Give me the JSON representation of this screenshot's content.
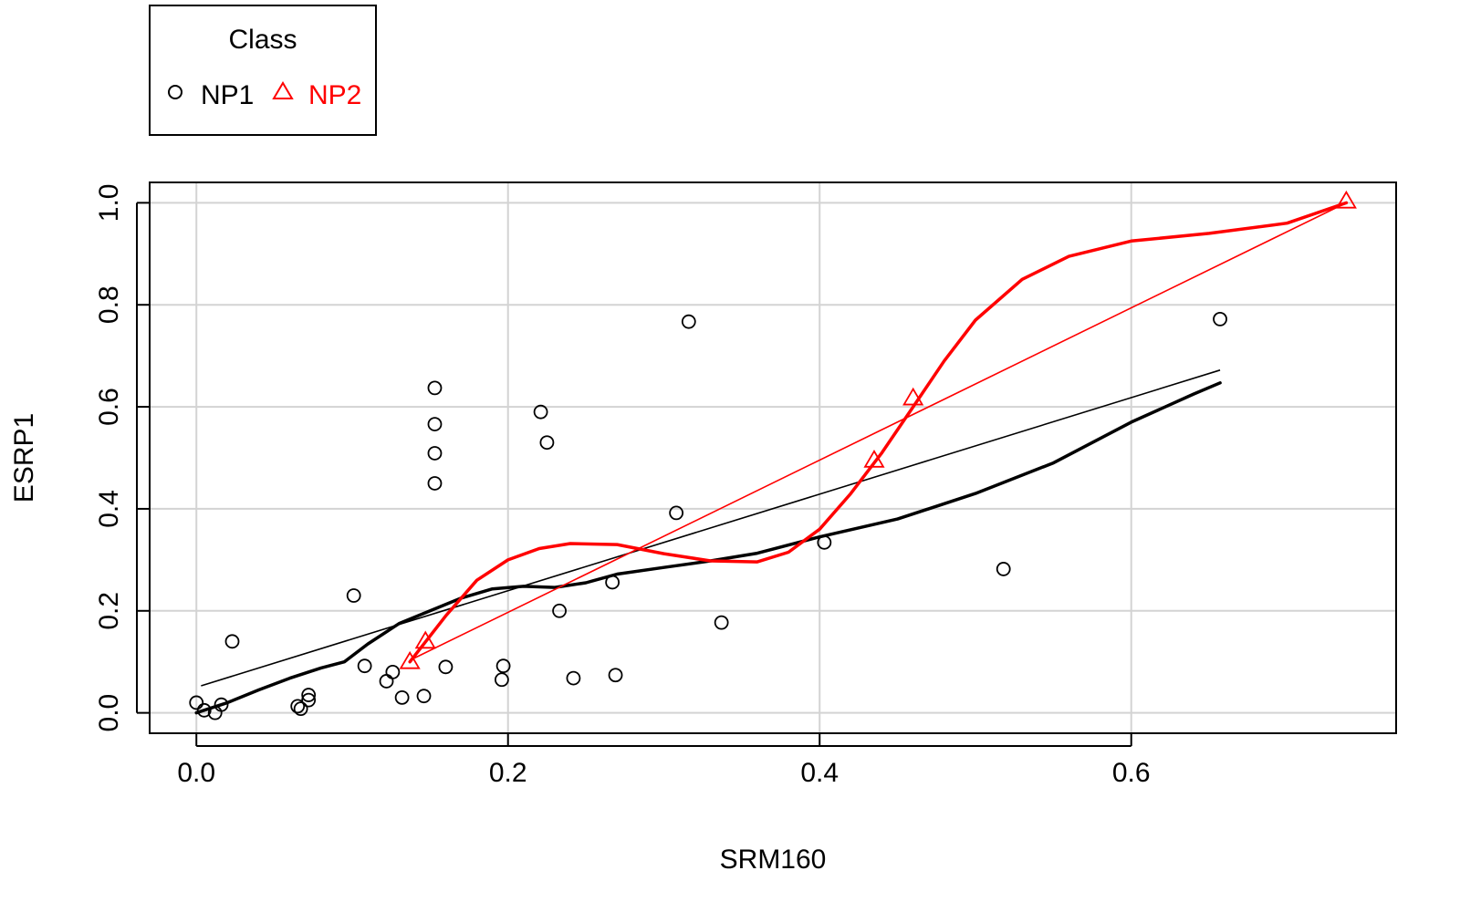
{
  "chart_data": {
    "type": "scatter",
    "xlabel": "SRM160",
    "ylabel": "ESRP1",
    "xlim": [
      -0.03,
      0.77
    ],
    "ylim": [
      -0.04,
      1.04
    ],
    "x_ticks": [
      0.0,
      0.2,
      0.4,
      0.6
    ],
    "x_tick_labels": [
      "0.0",
      "0.2",
      "0.4",
      "0.6"
    ],
    "y_ticks": [
      0.0,
      0.2,
      0.4,
      0.6,
      0.8,
      1.0
    ],
    "y_tick_labels": [
      "0.0",
      "0.2",
      "0.4",
      "0.6",
      "0.8",
      "1.0"
    ],
    "grid": true,
    "legend": {
      "title": "Class",
      "position": "top-left, above plot",
      "entries": [
        {
          "label": "NP1",
          "marker": "circle",
          "color": "#000000"
        },
        {
          "label": "NP2",
          "marker": "triangle",
          "color": "#ff0000"
        }
      ]
    },
    "series": [
      {
        "name": "NP1",
        "marker": "circle",
        "color": "#000000",
        "points": [
          [
            0.0,
            0.02
          ],
          [
            0.005,
            0.005
          ],
          [
            0.012,
            0.0
          ],
          [
            0.016,
            0.016
          ],
          [
            0.023,
            0.14
          ],
          [
            0.065,
            0.013
          ],
          [
            0.067,
            0.008
          ],
          [
            0.072,
            0.035
          ],
          [
            0.072,
            0.025
          ],
          [
            0.101,
            0.23
          ],
          [
            0.108,
            0.092
          ],
          [
            0.122,
            0.062
          ],
          [
            0.126,
            0.08
          ],
          [
            0.132,
            0.03
          ],
          [
            0.146,
            0.033
          ],
          [
            0.153,
            0.637
          ],
          [
            0.153,
            0.566
          ],
          [
            0.153,
            0.509
          ],
          [
            0.153,
            0.45
          ],
          [
            0.16,
            0.09
          ],
          [
            0.196,
            0.065
          ],
          [
            0.197,
            0.092
          ],
          [
            0.221,
            0.59
          ],
          [
            0.225,
            0.53
          ],
          [
            0.233,
            0.2
          ],
          [
            0.242,
            0.068
          ],
          [
            0.267,
            0.256
          ],
          [
            0.269,
            0.074
          ],
          [
            0.308,
            0.392
          ],
          [
            0.316,
            0.767
          ],
          [
            0.337,
            0.177
          ],
          [
            0.403,
            0.334
          ],
          [
            0.518,
            0.282
          ],
          [
            0.657,
            0.772
          ]
        ],
        "fit_line": [
          [
            0.003,
            0.053
          ],
          [
            0.657,
            0.672
          ]
        ],
        "smooth_curve": [
          [
            0.0,
            0.0
          ],
          [
            0.02,
            0.02
          ],
          [
            0.04,
            0.045
          ],
          [
            0.06,
            0.068
          ],
          [
            0.08,
            0.088
          ],
          [
            0.095,
            0.1
          ],
          [
            0.11,
            0.135
          ],
          [
            0.13,
            0.175
          ],
          [
            0.15,
            0.2
          ],
          [
            0.17,
            0.225
          ],
          [
            0.19,
            0.243
          ],
          [
            0.21,
            0.248
          ],
          [
            0.23,
            0.246
          ],
          [
            0.25,
            0.255
          ],
          [
            0.27,
            0.272
          ],
          [
            0.3,
            0.285
          ],
          [
            0.33,
            0.298
          ],
          [
            0.36,
            0.313
          ],
          [
            0.4,
            0.345
          ],
          [
            0.45,
            0.38
          ],
          [
            0.5,
            0.43
          ],
          [
            0.55,
            0.49
          ],
          [
            0.6,
            0.57
          ],
          [
            0.64,
            0.625
          ],
          [
            0.657,
            0.647
          ]
        ]
      },
      {
        "name": "NP2",
        "marker": "triangle",
        "color": "#ff0000",
        "points": [
          [
            0.137,
            0.1
          ],
          [
            0.147,
            0.14
          ],
          [
            0.435,
            0.495
          ],
          [
            0.46,
            0.617
          ],
          [
            0.738,
            1.003
          ]
        ],
        "fit_line": [
          [
            0.137,
            0.103
          ],
          [
            0.738,
            1.0
          ]
        ],
        "smooth_curve": [
          [
            0.137,
            0.1
          ],
          [
            0.16,
            0.19
          ],
          [
            0.18,
            0.26
          ],
          [
            0.2,
            0.3
          ],
          [
            0.22,
            0.322
          ],
          [
            0.24,
            0.332
          ],
          [
            0.27,
            0.33
          ],
          [
            0.3,
            0.312
          ],
          [
            0.33,
            0.298
          ],
          [
            0.36,
            0.296
          ],
          [
            0.38,
            0.315
          ],
          [
            0.4,
            0.36
          ],
          [
            0.42,
            0.43
          ],
          [
            0.44,
            0.51
          ],
          [
            0.46,
            0.6
          ],
          [
            0.48,
            0.69
          ],
          [
            0.5,
            0.77
          ],
          [
            0.53,
            0.85
          ],
          [
            0.56,
            0.895
          ],
          [
            0.6,
            0.925
          ],
          [
            0.65,
            0.94
          ],
          [
            0.7,
            0.96
          ],
          [
            0.738,
            1.0
          ]
        ]
      }
    ]
  }
}
